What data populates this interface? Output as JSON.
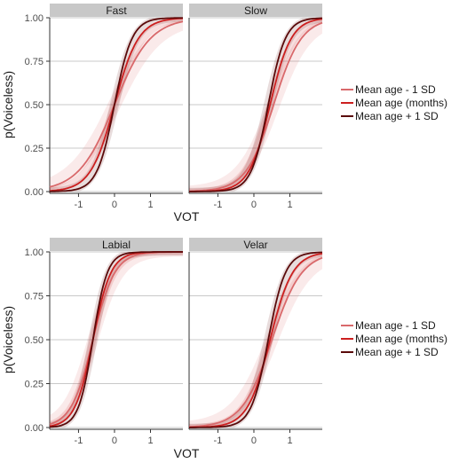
{
  "chart_data": [
    {
      "type": "line",
      "facets": [
        "Fast",
        "Slow"
      ],
      "xlabel": "VOT",
      "ylabel": "p(Voiceless)",
      "xlim": [
        -1.8,
        1.9
      ],
      "ylim": [
        0,
        1
      ],
      "x_ticks": [
        -1,
        0,
        1
      ],
      "y_ticks": [
        "0.00",
        "0.25",
        "0.50",
        "0.75",
        "1.00"
      ],
      "grid": true,
      "legend_position": "right",
      "legend": [
        {
          "label": "Mean age - 1 SD",
          "color": "#d9696b"
        },
        {
          "label": "Mean age (months)",
          "color": "#cc1f1f"
        },
        {
          "label": "Mean age + 1 SD",
          "color": "#5a0a0a"
        }
      ],
      "panels": [
        {
          "title": "Fast",
          "series": [
            {
              "name": "Mean age - 1 SD",
              "midpoint": 0.0,
              "slope": 2.0,
              "band": 0.09
            },
            {
              "name": "Mean age (months)",
              "midpoint": 0.0,
              "slope": 3.0,
              "band": 0.05
            },
            {
              "name": "Mean age + 1 SD",
              "midpoint": 0.0,
              "slope": 4.1,
              "band": 0.07
            }
          ]
        },
        {
          "title": "Slow",
          "series": [
            {
              "name": "Mean age - 1 SD",
              "midpoint": 0.55,
              "slope": 2.6,
              "band": 0.09
            },
            {
              "name": "Mean age (months)",
              "midpoint": 0.45,
              "slope": 3.4,
              "band": 0.05
            },
            {
              "name": "Mean age + 1 SD",
              "midpoint": 0.4,
              "slope": 4.2,
              "band": 0.07
            }
          ]
        }
      ]
    },
    {
      "type": "line",
      "facets": [
        "Labial",
        "Velar"
      ],
      "xlabel": "VOT",
      "ylabel": "p(Voiceless)",
      "xlim": [
        -1.8,
        1.9
      ],
      "ylim": [
        0,
        1
      ],
      "x_ticks": [
        -1,
        0,
        1
      ],
      "y_ticks": [
        "0.00",
        "0.25",
        "0.50",
        "0.75",
        "1.00"
      ],
      "grid": true,
      "legend_position": "right",
      "legend": [
        {
          "label": "Mean age - 1 SD",
          "color": "#d9696b"
        },
        {
          "label": "Mean age (months)",
          "color": "#cc1f1f"
        },
        {
          "label": "Mean age + 1 SD",
          "color": "#5a0a0a"
        }
      ],
      "panels": [
        {
          "title": "Labial",
          "series": [
            {
              "name": "Mean age - 1 SD",
              "midpoint": -0.6,
              "slope": 3.3,
              "band": 0.08
            },
            {
              "name": "Mean age (months)",
              "midpoint": -0.6,
              "slope": 4.0,
              "band": 0.05
            },
            {
              "name": "Mean age + 1 SD",
              "midpoint": -0.6,
              "slope": 5.0,
              "band": 0.07
            }
          ]
        },
        {
          "title": "Velar",
          "series": [
            {
              "name": "Mean age - 1 SD",
              "midpoint": 0.5,
              "slope": 2.4,
              "band": 0.09
            },
            {
              "name": "Mean age (months)",
              "midpoint": 0.45,
              "slope": 3.2,
              "band": 0.05
            },
            {
              "name": "Mean age + 1 SD",
              "midpoint": 0.4,
              "slope": 4.2,
              "band": 0.07
            }
          ]
        }
      ]
    }
  ]
}
